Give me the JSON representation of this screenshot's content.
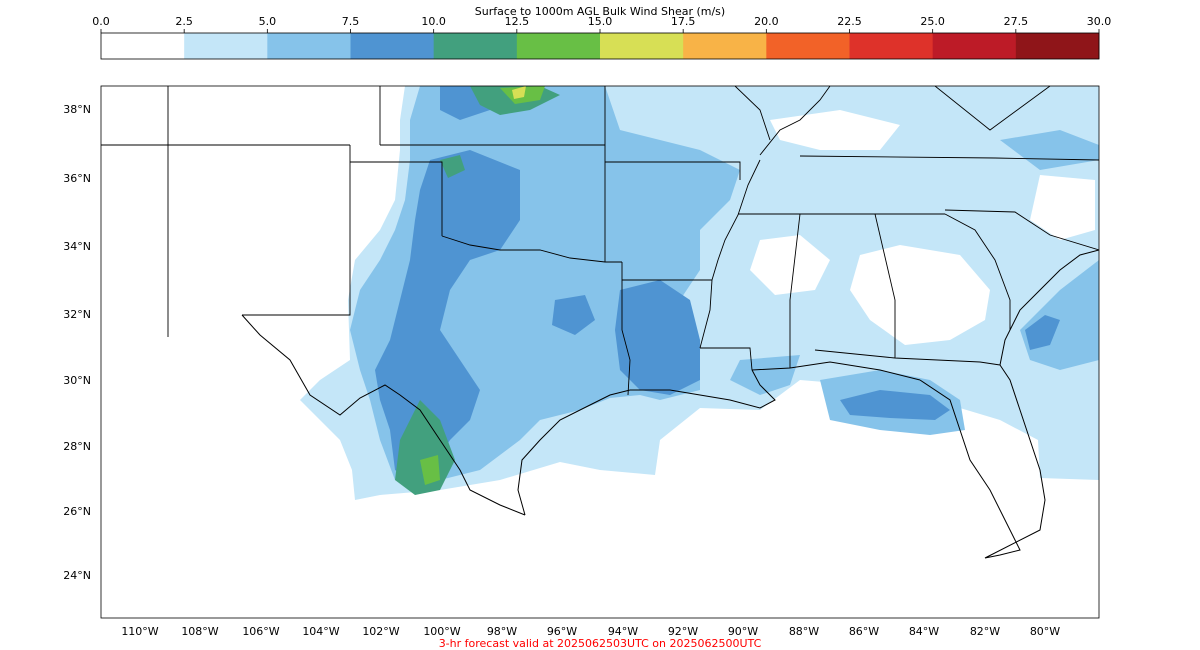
{
  "colorbar": {
    "title": "Surface to 1000m AGL Bulk Wind Shear (m/s)",
    "ticks": [
      "0.0",
      "2.5",
      "5.0",
      "7.5",
      "10.0",
      "12.5",
      "15.0",
      "17.5",
      "20.0",
      "22.5",
      "25.0",
      "27.5",
      "30.0"
    ],
    "colors": [
      "#ffffff",
      "#c4e6f8",
      "#86c3ea",
      "#4f94d2",
      "#42a07e",
      "#68bf45",
      "#d7df55",
      "#f8b347",
      "#f26228",
      "#de322a",
      "#bd1b27",
      "#8f1519"
    ]
  },
  "map": {
    "lat_labels": [
      "38°N",
      "36°N",
      "34°N",
      "32°N",
      "30°N",
      "28°N",
      "26°N",
      "24°N"
    ],
    "lon_labels": [
      "110°W",
      "108°W",
      "106°W",
      "104°W",
      "102°W",
      "100°W",
      "98°W",
      "96°W",
      "94°W",
      "92°W",
      "90°W",
      "88°W",
      "86°W",
      "84°W",
      "82°W",
      "80°W"
    ]
  },
  "footer": "3-hr forecast valid at 2025062503UTC on 2025062500UTC"
}
